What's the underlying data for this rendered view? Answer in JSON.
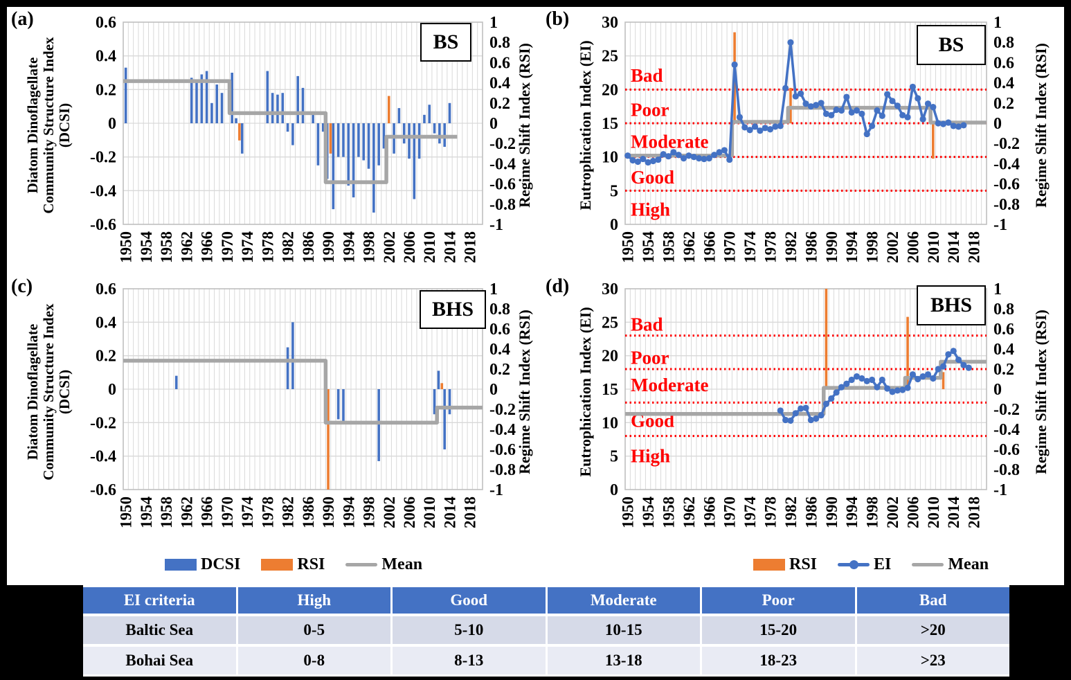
{
  "colors": {
    "bar_blue": "#4472C4",
    "rsi_orange": "#ED7D31",
    "mean_gray": "#A6A6A6",
    "grid": "#D9D9D9",
    "plot_border": "#BFBFBF",
    "zone_red": "#FF0000",
    "table_header_bg": "#4472C4",
    "table_row1_bg": "#D6DAE8",
    "table_row2_bg": "#E9EBF4"
  },
  "chart_data": [
    {
      "id": "a",
      "panel_label": "(a)",
      "badge": "BS",
      "type": "bar",
      "xlabel": "",
      "x_ticks": [
        "1950",
        "1954",
        "1958",
        "1962",
        "1966",
        "1970",
        "1974",
        "1978",
        "1982",
        "1986",
        "1990",
        "1994",
        "1998",
        "2002",
        "2006",
        "2010",
        "2014",
        "2018"
      ],
      "left_axis": {
        "title": "Diatom Dinoflagellate\nCommunity Structure Index\n(DCSI)",
        "min": -0.6,
        "max": 0.6,
        "step": 0.2
      },
      "right_axis": {
        "title": "Regime Shift Index (RSI)",
        "min": -1,
        "max": 1,
        "step": 0.2
      },
      "dcsi_bars": [
        [
          1950,
          0.33
        ],
        [
          1963,
          0.27
        ],
        [
          1964,
          0.25
        ],
        [
          1965,
          0.29
        ],
        [
          1966,
          0.31
        ],
        [
          1967,
          0.12
        ],
        [
          1968,
          0.23
        ],
        [
          1969,
          0.18
        ],
        [
          1971,
          0.3
        ],
        [
          1972,
          0.03
        ],
        [
          1973,
          -0.18
        ],
        [
          1978,
          0.31
        ],
        [
          1979,
          0.18
        ],
        [
          1980,
          0.17
        ],
        [
          1981,
          0.18
        ],
        [
          1982,
          -0.05
        ],
        [
          1983,
          -0.13
        ],
        [
          1984,
          0.28
        ],
        [
          1985,
          0.21
        ],
        [
          1987,
          0.07
        ],
        [
          1988,
          -0.25
        ],
        [
          1989,
          -0.05
        ],
        [
          1990,
          -0.33
        ],
        [
          1991,
          -0.51
        ],
        [
          1992,
          -0.2
        ],
        [
          1993,
          -0.2
        ],
        [
          1994,
          -0.37
        ],
        [
          1995,
          -0.44
        ],
        [
          1996,
          -0.2
        ],
        [
          1997,
          -0.22
        ],
        [
          1998,
          -0.27
        ],
        [
          1999,
          -0.53
        ],
        [
          2000,
          -0.25
        ],
        [
          2001,
          -0.15
        ],
        [
          2003,
          -0.18
        ],
        [
          2004,
          0.09
        ],
        [
          2005,
          -0.12
        ],
        [
          2006,
          -0.21
        ],
        [
          2007,
          -0.45
        ],
        [
          2008,
          -0.21
        ],
        [
          2009,
          0.05
        ],
        [
          2010,
          0.11
        ],
        [
          2011,
          -0.06
        ],
        [
          2012,
          -0.12
        ],
        [
          2013,
          -0.14
        ],
        [
          2014,
          0.12
        ]
      ],
      "rsi_bars": [
        [
          1972,
          -0.17
        ],
        [
          1990,
          -0.3
        ],
        [
          2002,
          0.27
        ]
      ],
      "mean_segments": [
        [
          1950,
          1970,
          0.25
        ],
        [
          1971,
          1989,
          0.06
        ],
        [
          1990,
          2001,
          -0.35
        ],
        [
          2002,
          2015,
          -0.08
        ]
      ]
    },
    {
      "id": "b",
      "panel_label": "(b)",
      "badge": "BS",
      "type": "line",
      "xlabel": "",
      "x_ticks": [
        "1950",
        "1954",
        "1958",
        "1962",
        "1966",
        "1970",
        "1974",
        "1978",
        "1982",
        "1986",
        "1990",
        "1994",
        "1998",
        "2002",
        "2006",
        "2010",
        "2014",
        "2018"
      ],
      "left_axis": {
        "title": "Eutrophication Index (EI)",
        "min": 0,
        "max": 30,
        "step": 5
      },
      "right_axis": {
        "title": "Regime Shift Index (RSI)",
        "min": -1,
        "max": 1,
        "step": 0.2
      },
      "zone_lines": [
        20,
        15,
        10,
        5
      ],
      "zone_labels": [
        [
          "Bad",
          22.2
        ],
        [
          "Poor",
          17.1
        ],
        [
          "Moderate",
          12.4
        ],
        [
          "Good",
          7.1
        ],
        [
          "High",
          2.3
        ]
      ],
      "ei_series": [
        [
          1950,
          10.2
        ],
        [
          1951,
          9.5
        ],
        [
          1952,
          9.3
        ],
        [
          1953,
          9.7
        ],
        [
          1954,
          9.2
        ],
        [
          1955,
          9.4
        ],
        [
          1956,
          9.6
        ],
        [
          1957,
          10.4
        ],
        [
          1958,
          10.1
        ],
        [
          1959,
          10.7
        ],
        [
          1960,
          10.3
        ],
        [
          1961,
          9.8
        ],
        [
          1962,
          10.2
        ],
        [
          1963,
          10.0
        ],
        [
          1964,
          9.8
        ],
        [
          1965,
          9.7
        ],
        [
          1966,
          9.8
        ],
        [
          1967,
          10.3
        ],
        [
          1968,
          10.7
        ],
        [
          1969,
          11.0
        ],
        [
          1970,
          9.6
        ],
        [
          1971,
          23.7
        ],
        [
          1972,
          15.9
        ],
        [
          1973,
          14.4
        ],
        [
          1974,
          14.0
        ],
        [
          1975,
          14.5
        ],
        [
          1976,
          13.9
        ],
        [
          1977,
          14.3
        ],
        [
          1978,
          14.1
        ],
        [
          1979,
          14.5
        ],
        [
          1980,
          14.6
        ],
        [
          1981,
          20.2
        ],
        [
          1982,
          27.0
        ],
        [
          1983,
          19.0
        ],
        [
          1984,
          19.4
        ],
        [
          1985,
          17.9
        ],
        [
          1986,
          17.5
        ],
        [
          1987,
          17.7
        ],
        [
          1988,
          18.0
        ],
        [
          1989,
          16.4
        ],
        [
          1990,
          16.2
        ],
        [
          1991,
          17.0
        ],
        [
          1992,
          16.9
        ],
        [
          1993,
          18.9
        ],
        [
          1994,
          16.6
        ],
        [
          1995,
          16.9
        ],
        [
          1996,
          16.4
        ],
        [
          1997,
          13.4
        ],
        [
          1998,
          14.6
        ],
        [
          1999,
          16.9
        ],
        [
          2000,
          16.1
        ],
        [
          2001,
          19.3
        ],
        [
          2002,
          18.3
        ],
        [
          2003,
          17.6
        ],
        [
          2004,
          16.2
        ],
        [
          2005,
          15.9
        ],
        [
          2006,
          20.4
        ],
        [
          2007,
          18.7
        ],
        [
          2008,
          15.6
        ],
        [
          2009,
          17.9
        ],
        [
          2010,
          17.4
        ],
        [
          2011,
          15.0
        ],
        [
          2012,
          14.9
        ],
        [
          2013,
          15.1
        ],
        [
          2014,
          14.6
        ],
        [
          2015,
          14.5
        ],
        [
          2016,
          14.7
        ]
      ],
      "rsi_bars": [
        [
          1971,
          0.9
        ],
        [
          1982,
          0.35
        ],
        [
          2010,
          -0.35
        ]
      ],
      "mean_segments": [
        [
          1950,
          1970,
          10.2
        ],
        [
          1971,
          1981,
          15.2
        ],
        [
          1982,
          2009,
          17.3
        ],
        [
          2010,
          2020,
          15.1
        ]
      ]
    },
    {
      "id": "c",
      "panel_label": "(c)",
      "badge": "BHS",
      "type": "bar",
      "xlabel": "",
      "x_ticks": [
        "1950",
        "1954",
        "1958",
        "1962",
        "1966",
        "1970",
        "1974",
        "1978",
        "1982",
        "1986",
        "1990",
        "1994",
        "1998",
        "2002",
        "2006",
        "2010",
        "2014",
        "2018"
      ],
      "left_axis": {
        "title": "Diatom Dinoflagellate\nCommunity Structure Index\n(DCSI)",
        "min": -0.6,
        "max": 0.6,
        "step": 0.2
      },
      "right_axis": {
        "title": "Regime Shift Index (RSI)",
        "min": -1,
        "max": 1,
        "step": 0.2
      },
      "dcsi_bars": [
        [
          1960,
          0.08
        ],
        [
          1982,
          0.25
        ],
        [
          1983,
          0.4
        ],
        [
          1992,
          -0.18
        ],
        [
          1993,
          -0.19
        ],
        [
          2000,
          -0.43
        ],
        [
          2011,
          -0.15
        ],
        [
          2012,
          0.11
        ],
        [
          2013,
          -0.36
        ],
        [
          2014,
          -0.15
        ]
      ],
      "rsi_bars": [
        [
          1990,
          -1.0
        ],
        [
          2012,
          0.06
        ]
      ],
      "mean_segments": [
        [
          1950,
          1989,
          0.17
        ],
        [
          1990,
          2011,
          -0.2
        ],
        [
          2012,
          2020,
          -0.11
        ]
      ]
    },
    {
      "id": "d",
      "panel_label": "(d)",
      "badge": "BHS",
      "type": "line",
      "xlabel": "",
      "x_ticks": [
        "1950",
        "1954",
        "1958",
        "1962",
        "1966",
        "1970",
        "1974",
        "1978",
        "1982",
        "1986",
        "1990",
        "1994",
        "1998",
        "2002",
        "2006",
        "2010",
        "2014",
        "2018"
      ],
      "left_axis": {
        "title": "Eutrophication Index (EI)",
        "min": 0,
        "max": 30,
        "step": 5
      },
      "right_axis": {
        "title": "Regime Shift Index (RSI)",
        "min": -1,
        "max": 1,
        "step": 0.2
      },
      "zone_lines": [
        23,
        18,
        13,
        8
      ],
      "zone_labels": [
        [
          "Bad",
          24.8
        ],
        [
          "Poor",
          19.8
        ],
        [
          "Moderate",
          15.7
        ],
        [
          "Good",
          10.4
        ],
        [
          "High",
          5.1
        ]
      ],
      "ei_series": [
        [
          1980,
          11.8
        ],
        [
          1981,
          10.4
        ],
        [
          1982,
          10.3
        ],
        [
          1983,
          11.4
        ],
        [
          1984,
          12.1
        ],
        [
          1985,
          12.2
        ],
        [
          1986,
          10.4
        ],
        [
          1987,
          10.6
        ],
        [
          1988,
          11.1
        ],
        [
          1989,
          12.8
        ],
        [
          1990,
          13.6
        ],
        [
          1991,
          14.5
        ],
        [
          1992,
          15.3
        ],
        [
          1993,
          15.8
        ],
        [
          1994,
          16.4
        ],
        [
          1995,
          16.9
        ],
        [
          1996,
          16.6
        ],
        [
          1997,
          16.2
        ],
        [
          1998,
          16.4
        ],
        [
          1999,
          15.3
        ],
        [
          2000,
          16.4
        ],
        [
          2001,
          15.1
        ],
        [
          2002,
          14.6
        ],
        [
          2003,
          14.8
        ],
        [
          2004,
          14.9
        ],
        [
          2005,
          15.2
        ],
        [
          2006,
          17.2
        ],
        [
          2007,
          16.5
        ],
        [
          2008,
          16.9
        ],
        [
          2009,
          17.2
        ],
        [
          2010,
          16.6
        ],
        [
          2011,
          18.0
        ],
        [
          2012,
          18.4
        ],
        [
          2013,
          20.2
        ],
        [
          2014,
          20.7
        ],
        [
          2015,
          19.4
        ],
        [
          2016,
          18.6
        ],
        [
          2017,
          18.2
        ]
      ],
      "rsi_bars": [
        [
          1989,
          1.0
        ],
        [
          2005,
          0.72
        ],
        [
          2012,
          0.17
        ]
      ],
      "mean_segments": [
        [
          1950,
          1988,
          11.3
        ],
        [
          1989,
          2004,
          15.2
        ],
        [
          2005,
          2011,
          16.7
        ],
        [
          2012,
          2020,
          19.1
        ]
      ]
    }
  ],
  "legend_left": {
    "items": [
      {
        "label": "DCSI"
      },
      {
        "label": "RSI"
      },
      {
        "label": "Mean"
      }
    ]
  },
  "legend_right": {
    "items": [
      {
        "label": "RSI"
      },
      {
        "label": "EI"
      },
      {
        "label": "Mean"
      }
    ]
  },
  "table": {
    "header": [
      "EI criteria",
      "High",
      "Good",
      "Moderate",
      "Poor",
      "Bad"
    ],
    "rows": [
      [
        "Baltic Sea",
        "0-5",
        "5-10",
        "10-15",
        "15-20",
        ">20"
      ],
      [
        "Bohai Sea",
        "0-8",
        "8-13",
        "13-18",
        "18-23",
        ">23"
      ]
    ]
  }
}
